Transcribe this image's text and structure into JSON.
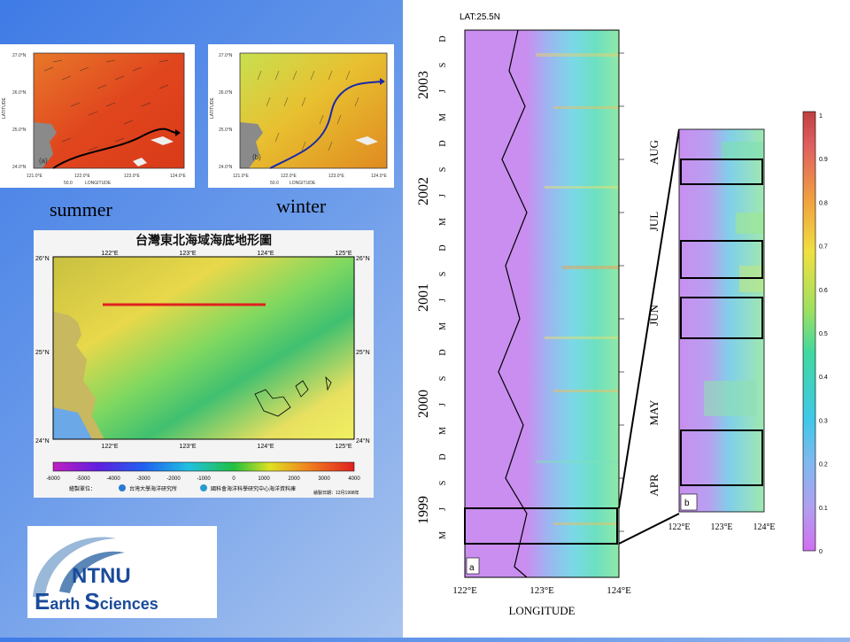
{
  "maps": {
    "summer_label": "(a)",
    "winter_label": "(b)",
    "lat_axis": "LATITUDE",
    "lon_axis": "LONGITUDE",
    "scale_label": "50.0",
    "lat_ticks": [
      "27.0°N",
      "26.0°N",
      "25.0°N",
      "24.0°N"
    ],
    "lon_ticks": [
      "121.0°E",
      "122.0°E",
      "123.0°E",
      "124.0°E"
    ]
  },
  "captions": {
    "summer": "summer",
    "winter": "winter"
  },
  "bathymetry": {
    "title": "台灣東北海域海底地形圖",
    "lon_ticks": [
      "122°E",
      "123°E",
      "124°E",
      "125°E"
    ],
    "lat_ticks": [
      "26°N",
      "25°N",
      "24°N"
    ],
    "colorbar_ticks": [
      "-6000",
      "-5000",
      "-4000",
      "-3000",
      "-2000",
      "-1000",
      "0",
      "1000",
      "2000",
      "3000",
      "4000"
    ],
    "credit_left": "繪製單位：",
    "credit_org1": "台灣大學海洋研究所",
    "credit_org2": "國科會海洋科學研究中心海洋資料庫",
    "credit_date": "繪製日期：12月1998年"
  },
  "logo": {
    "line1": "NTNU",
    "e": "E",
    "rest1": "arth ",
    "s": "S",
    "rest2": "ciences"
  },
  "hovmoller": {
    "title": "LAT:25.5N",
    "panel_label": "a",
    "xlabel": "LONGITUDE",
    "x_ticks": [
      "122°E",
      "123°E",
      "124°E"
    ],
    "years": [
      "2003",
      "2002",
      "2001",
      "2000",
      "1999"
    ],
    "months": [
      "D",
      "S",
      "J",
      "M",
      "D",
      "S",
      "J",
      "M",
      "D",
      "S",
      "J",
      "M",
      "D",
      "S",
      "J",
      "M",
      "D",
      "S",
      "J",
      "M"
    ]
  },
  "zoom": {
    "panel_label": "b",
    "x_ticks": [
      "122°E",
      "123°E",
      "124°E"
    ],
    "months": [
      "AUG",
      "JUL",
      "JUN",
      "MAY",
      "APR"
    ]
  },
  "colorbar": {
    "ticks": [
      "1",
      "0.9",
      "0.8",
      "0.7",
      "0.6",
      "0.5",
      "0.4",
      "0.3",
      "0.2",
      "0.1",
      "0"
    ]
  },
  "colors": {
    "background_start": "#3f7be6",
    "background_end": "#c9daf4",
    "hov_bg": "#c98ef0",
    "accent_red": "#e02020"
  }
}
